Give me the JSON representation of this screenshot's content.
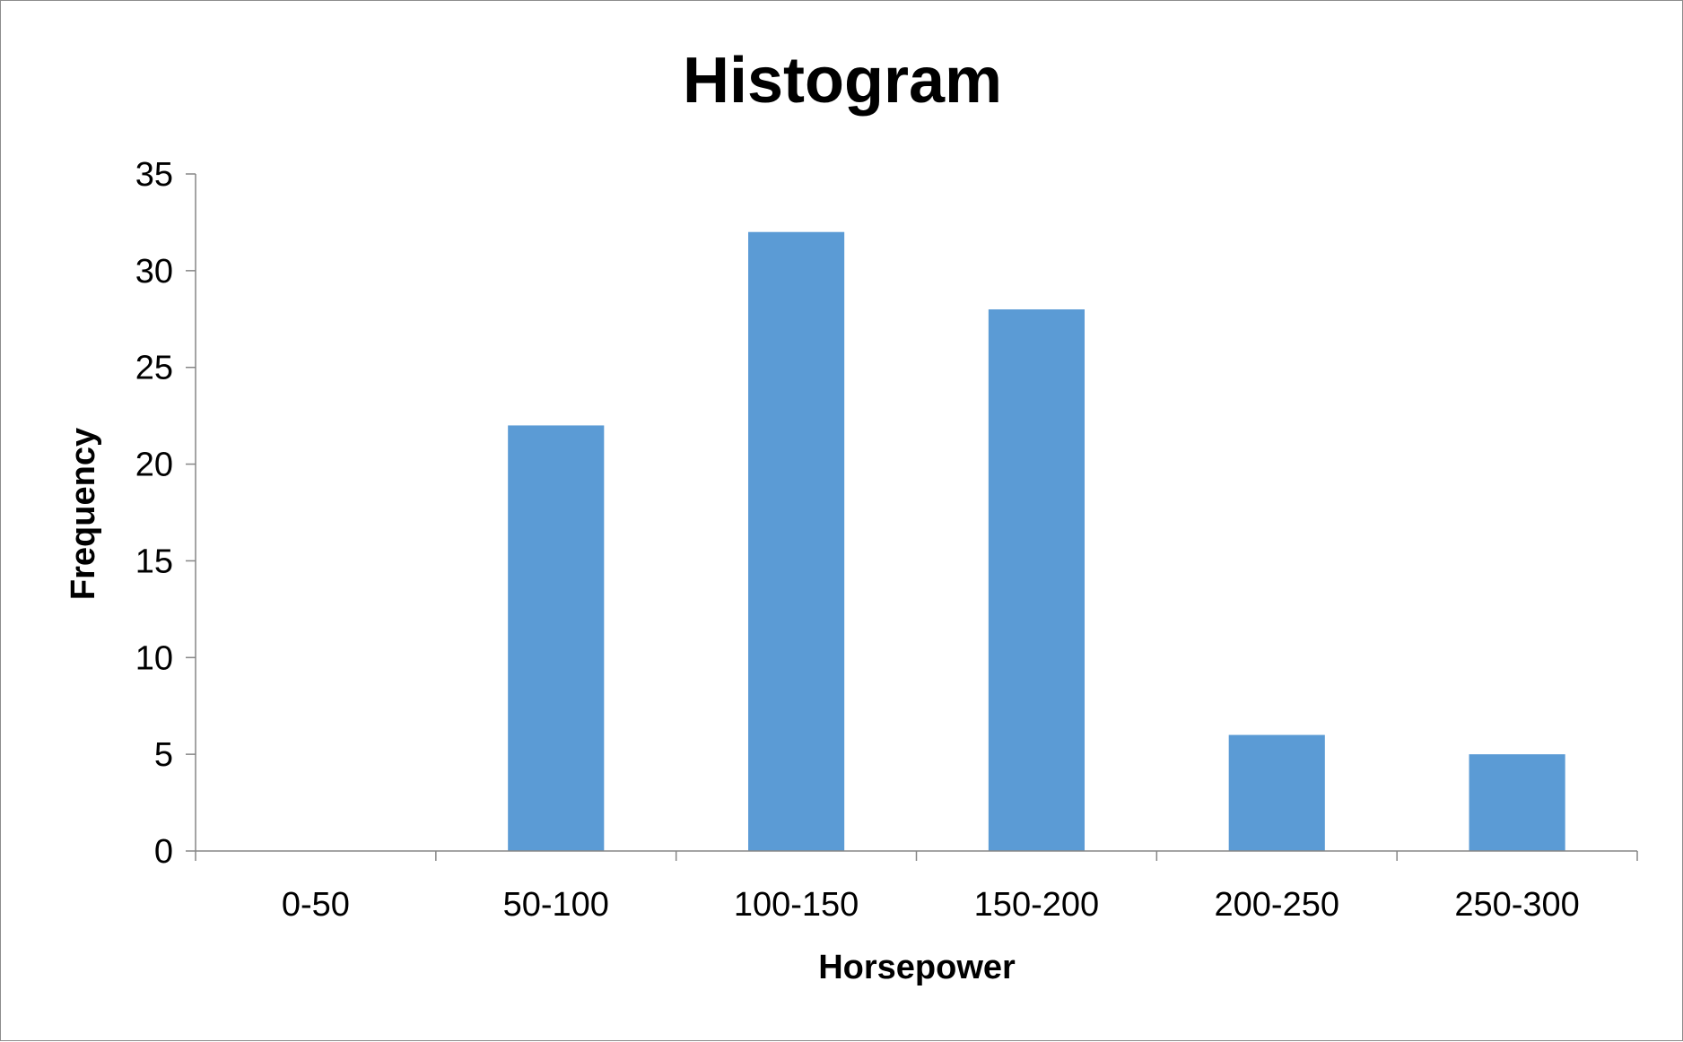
{
  "chart_data": {
    "type": "bar",
    "title": "Histogram",
    "xlabel": "Horsepower",
    "ylabel": "Frequency",
    "categories": [
      "0-50",
      "50-100",
      "100-150",
      "150-200",
      "200-250",
      "250-300"
    ],
    "values": [
      0,
      22,
      32,
      28,
      6,
      5
    ],
    "ylim": [
      0,
      35
    ],
    "yticks": [
      0,
      5,
      10,
      15,
      20,
      25,
      30,
      35
    ],
    "grid": false,
    "legend": "none",
    "bar_color": "#5b9bd5",
    "axis_color": "#868686"
  }
}
